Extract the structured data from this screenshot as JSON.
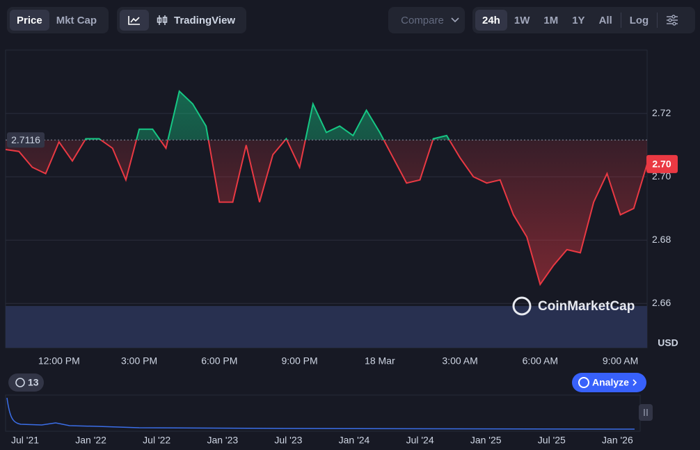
{
  "toolbar": {
    "tabs": [
      "Price",
      "Mkt Cap"
    ],
    "tradingview": "TradingView",
    "compare": "Compare",
    "ranges": [
      "24h",
      "1W",
      "1M",
      "1Y",
      "All"
    ],
    "log": "Log"
  },
  "chart_data": {
    "type": "line",
    "categories": [
      null,
      null,
      null,
      null,
      "12:00 PM",
      null,
      null,
      null,
      null,
      null,
      "3:00 PM",
      null,
      null,
      null,
      null,
      null,
      "6:00 PM",
      null,
      null,
      null,
      null,
      null,
      "9:00 PM",
      null,
      null,
      null,
      null,
      null,
      "18 Mar",
      null,
      null,
      null,
      null,
      null,
      "3:00 AM",
      null,
      null,
      null,
      null,
      null,
      "6:00 AM",
      null,
      null,
      null,
      null,
      null,
      "9:00 AM",
      null,
      null
    ],
    "values": [
      2.7086,
      2.708,
      2.703,
      2.701,
      2.711,
      2.705,
      2.712,
      2.712,
      2.709,
      2.699,
      2.715,
      2.715,
      2.709,
      2.727,
      2.723,
      2.716,
      2.692,
      2.692,
      2.71,
      2.692,
      2.707,
      2.712,
      2.703,
      2.723,
      2.714,
      2.716,
      2.713,
      2.721,
      2.714,
      2.706,
      2.698,
      2.699,
      2.712,
      2.713,
      2.706,
      2.7,
      2.698,
      2.699,
      2.688,
      2.681,
      2.666,
      2.672,
      2.677,
      2.676,
      2.692,
      2.701,
      2.688,
      2.69,
      2.704
    ],
    "last_value_label": "2.70",
    "baseline": 2.7116,
    "up_color": "#16c784",
    "down_color": "#ea3943",
    "ylim": [
      2.646,
      2.74
    ],
    "yticks": [
      2.66,
      2.68,
      {
        "value": 2.7,
        "label": "2.70"
      },
      2.72
    ],
    "y_unit": "USD",
    "grid": true,
    "watermark": "CoinMarketCap",
    "history_count": "13",
    "analyze": "Analyze",
    "navigator_labels": [
      "Jul '21",
      "Jan '22",
      "Jul '22",
      "Jan '23",
      "Jul '23",
      "Jan '24",
      "Jul '24",
      "Jan '25",
      "Jul '25",
      "Jan '26"
    ]
  }
}
